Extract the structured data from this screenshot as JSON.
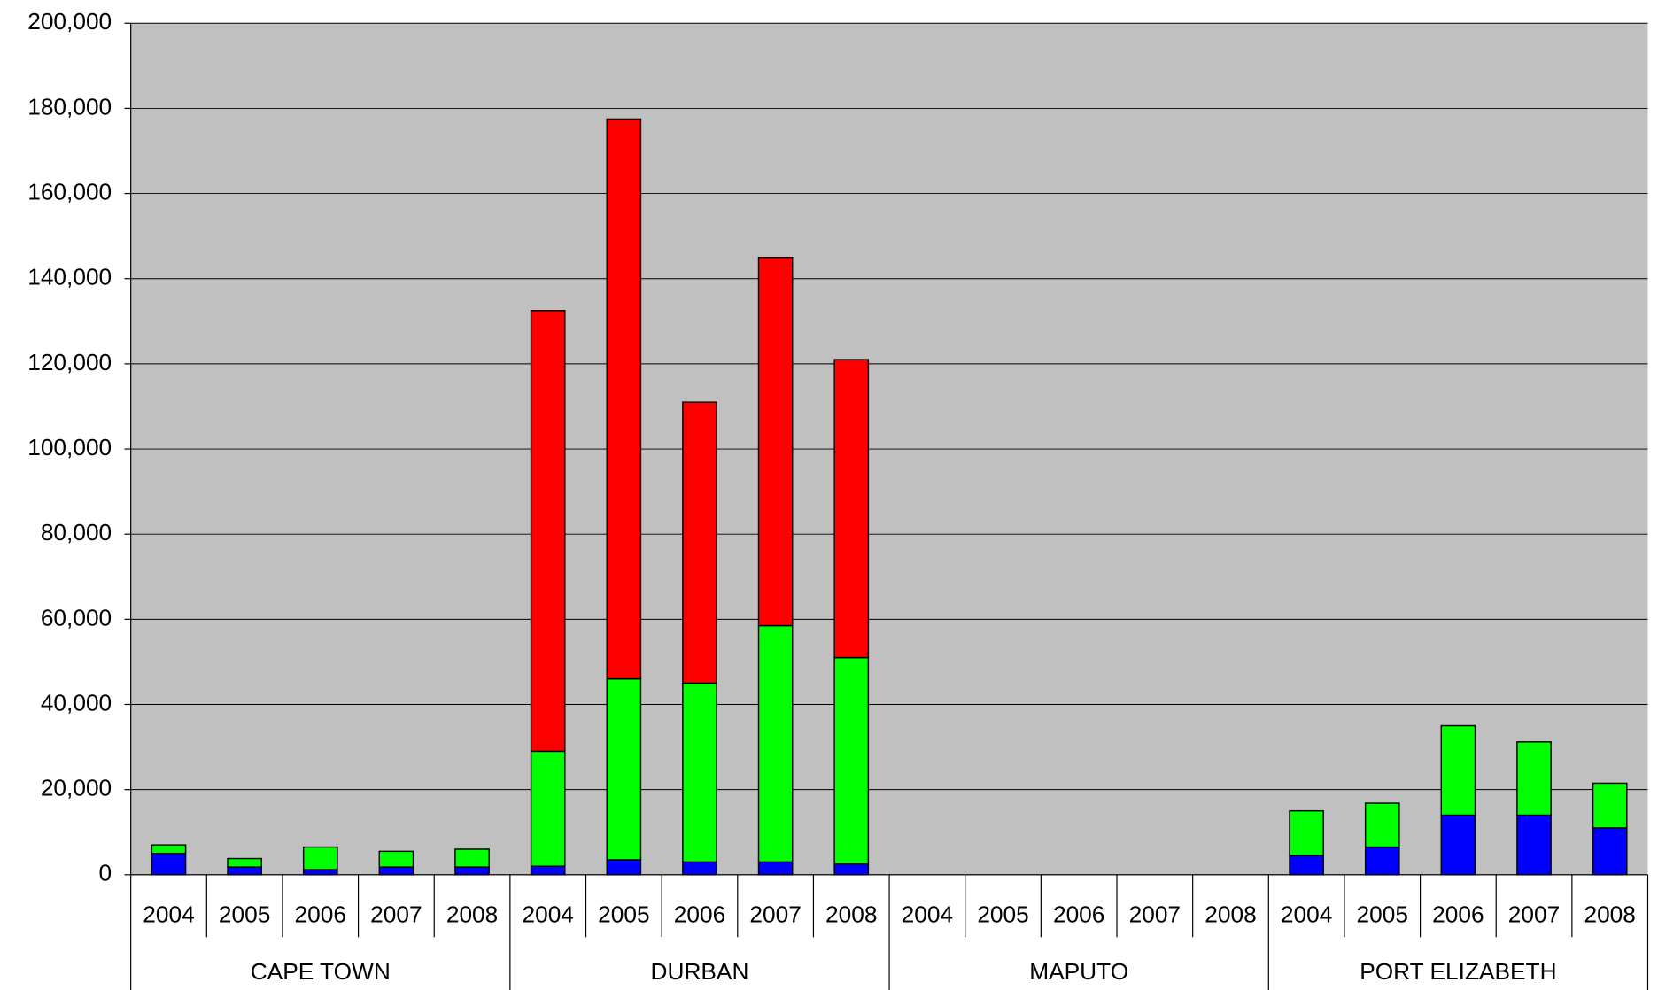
{
  "chart_data": {
    "type": "stacked-bar",
    "categories": [
      "2004",
      "2005",
      "2006",
      "2007",
      "2008",
      "2004",
      "2005",
      "2006",
      "2007",
      "2008",
      "2004",
      "2005",
      "2006",
      "2007",
      "2008",
      "2004",
      "2005",
      "2006",
      "2007",
      "2008"
    ],
    "groups": [
      "CAPE TOWN",
      "DURBAN",
      "MAPUTO",
      "PORT ELIZABETH"
    ],
    "series": [
      {
        "color": "#0000ff",
        "values": [
          5000,
          1800,
          1200,
          1800,
          1800,
          2000,
          3500,
          3000,
          3000,
          2500,
          0,
          0,
          0,
          0,
          0,
          4500,
          6500,
          14000,
          14000,
          11000
        ]
      },
      {
        "color": "#00ff00",
        "values": [
          2000,
          2000,
          5300,
          3700,
          4200,
          27000,
          42500,
          42000,
          55500,
          48500,
          0,
          0,
          0,
          0,
          0,
          10500,
          10300,
          21000,
          17200,
          10500
        ]
      },
      {
        "color": "#ff0000",
        "values": [
          0,
          0,
          0,
          0,
          0,
          103500,
          131500,
          66000,
          86500,
          70000,
          0,
          0,
          0,
          0,
          0,
          0,
          0,
          0,
          0,
          0
        ]
      }
    ],
    "ylim": [
      0,
      200000
    ],
    "yticks": [
      0,
      {
        "value": 20000,
        "label": "20,000"
      },
      {
        "value": 40000,
        "label": "40,000"
      },
      {
        "value": 60000,
        "label": "60,000"
      },
      {
        "value": 80000,
        "label": "80,000"
      },
      {
        "value": 100000,
        "label": "100,000"
      },
      {
        "value": 120000,
        "label": "120,000"
      },
      {
        "value": 140000,
        "label": "140,000"
      },
      {
        "value": 160000,
        "label": "160,000"
      },
      {
        "value": 180000,
        "label": "180,000"
      },
      {
        "value": 200000,
        "label": "200,000"
      }
    ],
    "grid": true
  }
}
